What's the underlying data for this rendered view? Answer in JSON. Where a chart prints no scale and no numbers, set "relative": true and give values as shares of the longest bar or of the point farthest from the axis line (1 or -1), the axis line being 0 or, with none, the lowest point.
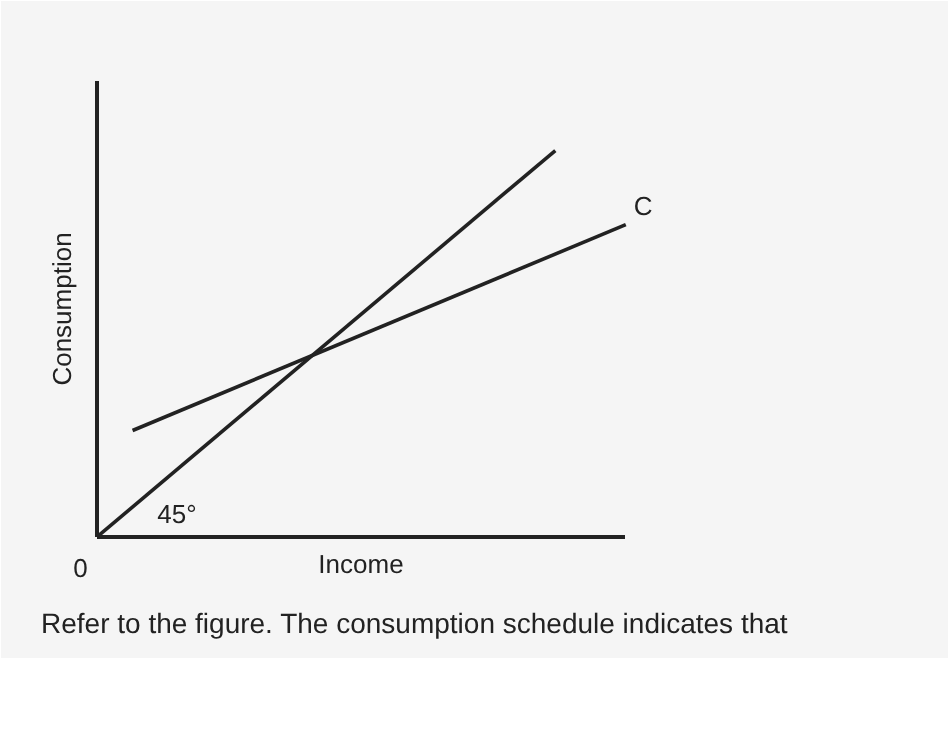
{
  "chart_data": {
    "type": "line",
    "relative": true,
    "xlabel": "Income",
    "ylabel": "Consumption",
    "categories": [
      null,
      null,
      null,
      null,
      null,
      null,
      null,
      null,
      null,
      null,
      null,
      null,
      null,
      null,
      null,
      null
    ],
    "series": [
      {
        "color": "#222222",
        "values": [
          0,
          null,
          null,
          null,
          null,
          null,
          null,
          null,
          null,
          null,
          null,
          null,
          null,
          1,
          null,
          null
        ]
      },
      {
        "name": "C",
        "color": "#222222",
        "values": [
          null,
          0.275,
          null,
          null,
          null,
          null,
          null,
          null,
          null,
          null,
          null,
          null,
          null,
          null,
          null,
          0.808
        ]
      }
    ],
    "annotations": [
      "0",
      "45°",
      "Refer to the figure. The consumption schedule indicates that"
    ]
  }
}
